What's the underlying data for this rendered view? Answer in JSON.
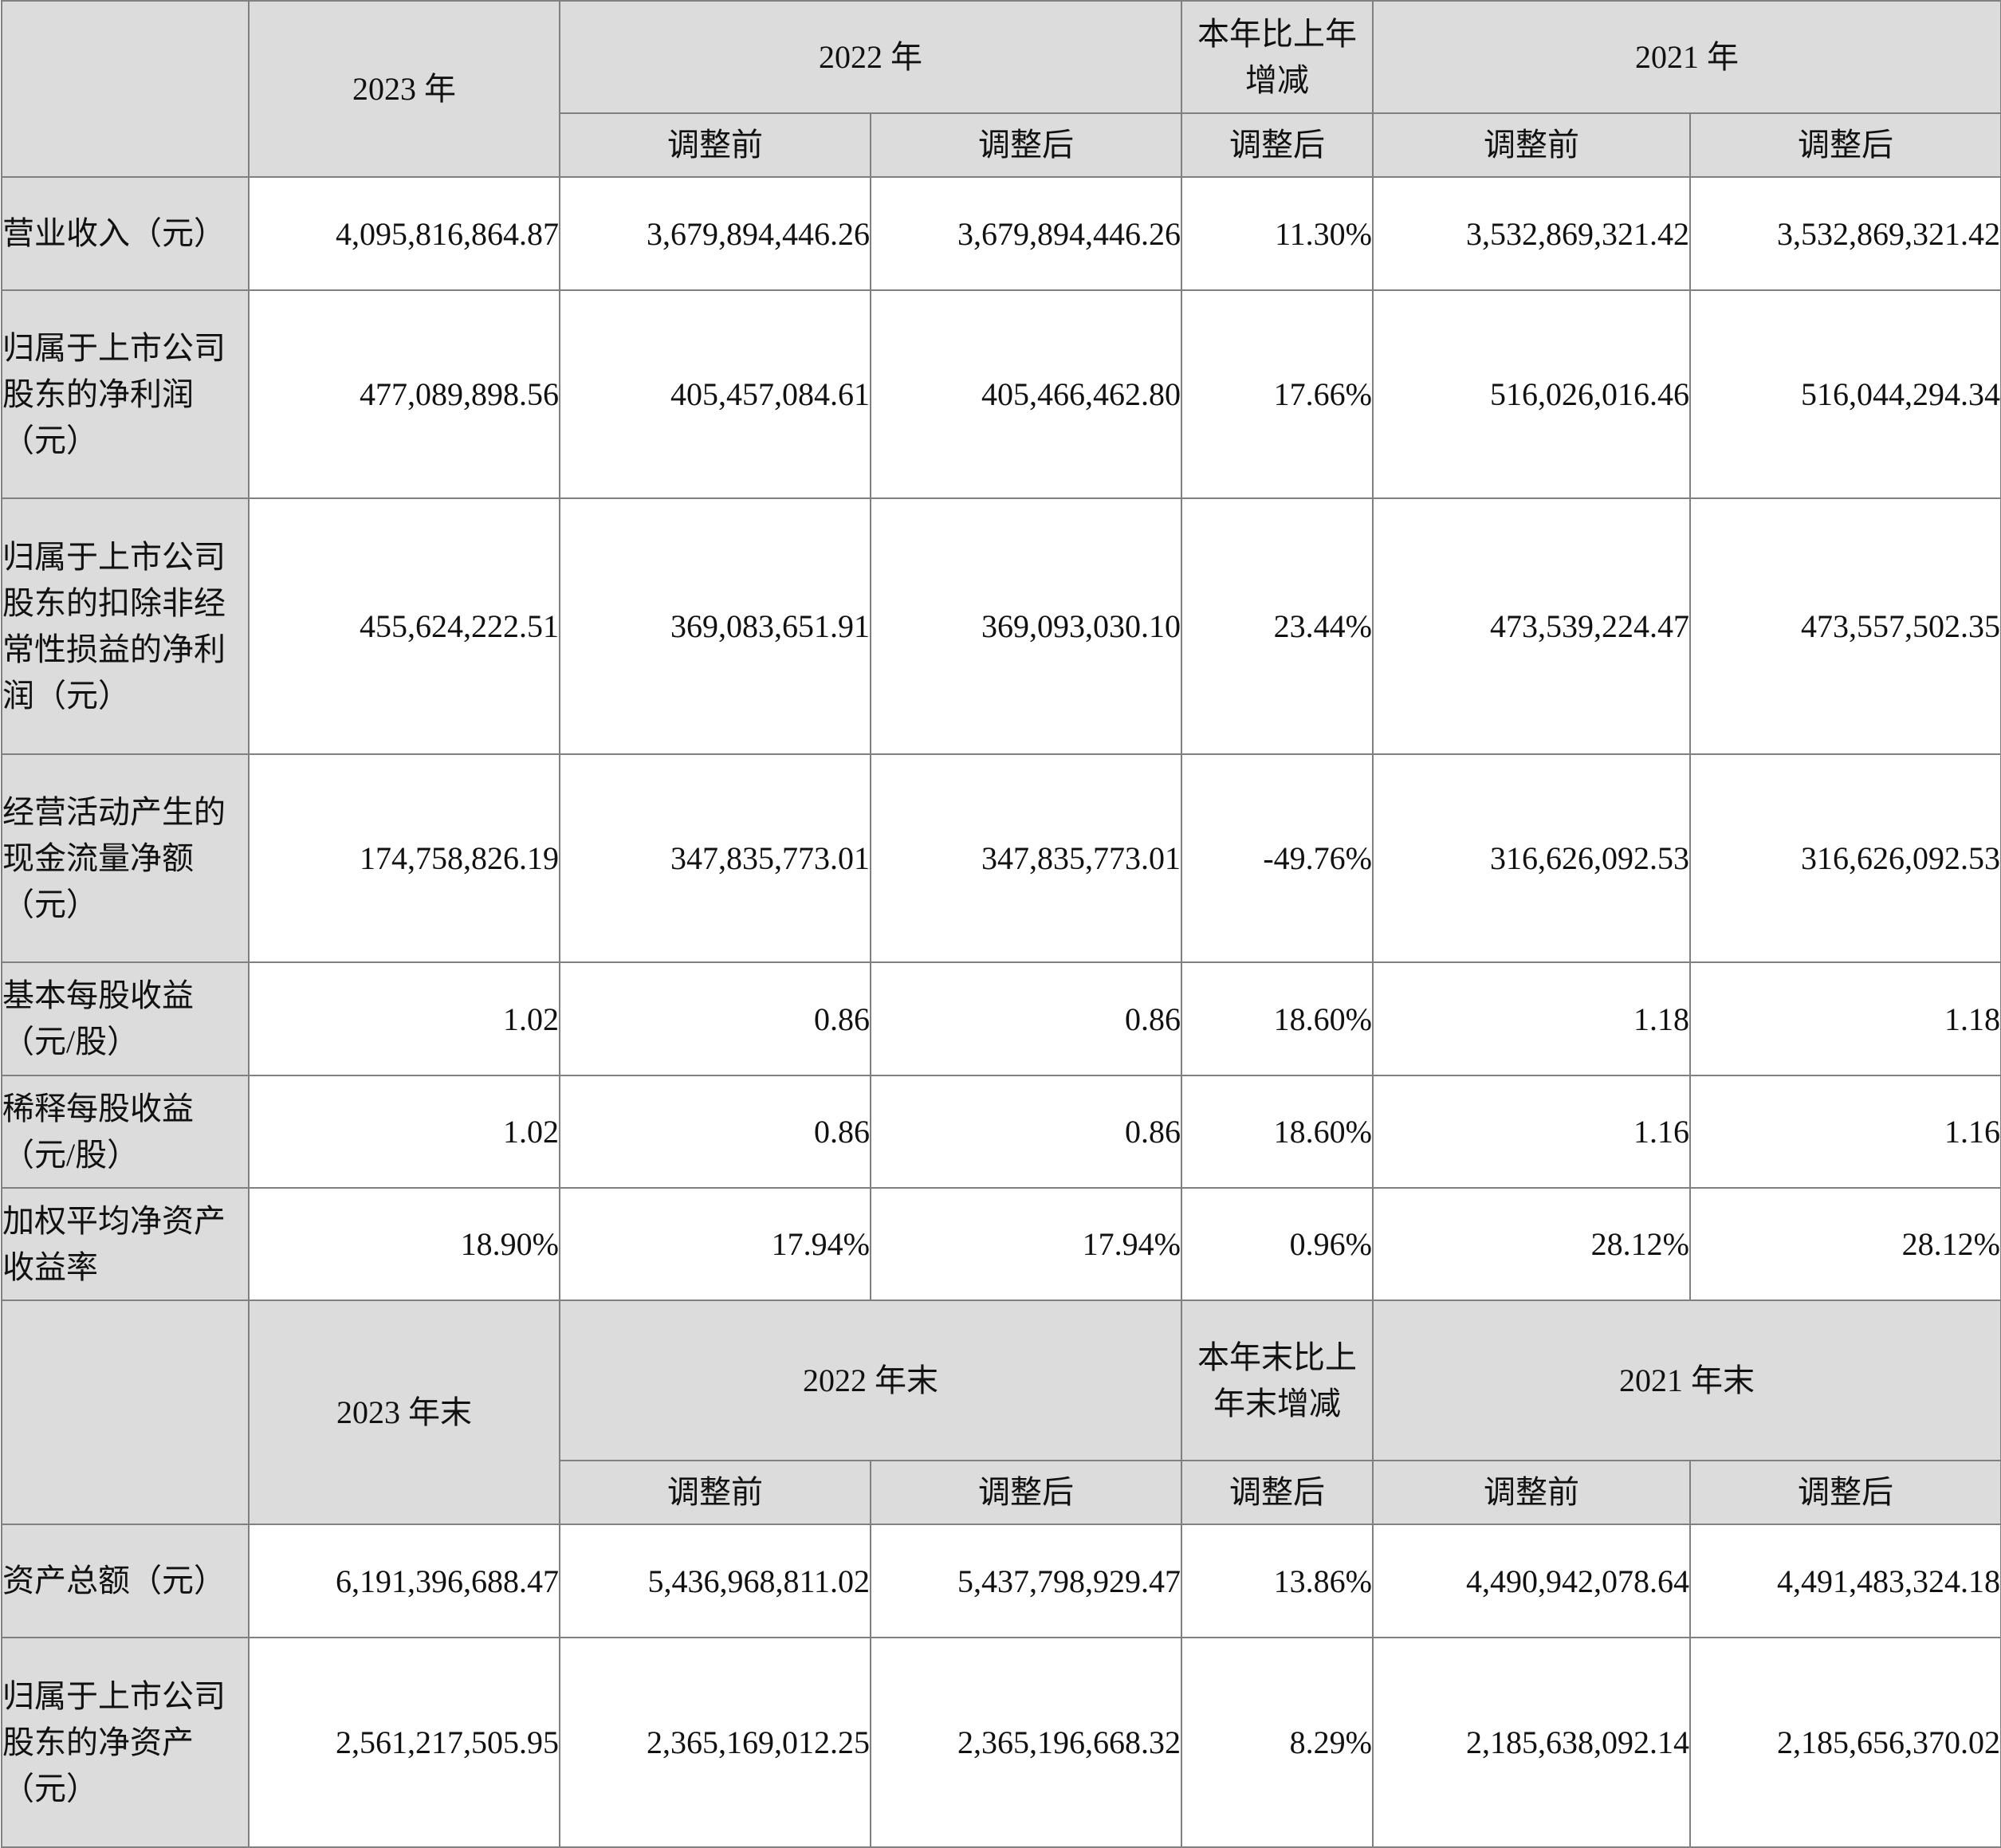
{
  "income_section": {
    "header": {
      "col_2023": "2023 年",
      "col_2022": "2022 年",
      "col_change": "本年比上年增减",
      "col_2021": "2021 年",
      "before_adj": "调整前",
      "after_adj": "调整后"
    },
    "rows": [
      {
        "label": "营业收入（元）",
        "y2023": "4,095,816,864.87",
        "y2022_before": "3,679,894,446.26",
        "y2022_after": "3,679,894,446.26",
        "change": "11.30%",
        "y2021_before": "3,532,869,321.42",
        "y2021_after": "3,532,869,321.42"
      },
      {
        "label": "归属于上市公司股东的净利润（元）",
        "y2023": "477,089,898.56",
        "y2022_before": "405,457,084.61",
        "y2022_after": "405,466,462.80",
        "change": "17.66%",
        "y2021_before": "516,026,016.46",
        "y2021_after": "516,044,294.34"
      },
      {
        "label": "归属于上市公司股东的扣除非经常性损益的净利润（元）",
        "y2023": "455,624,222.51",
        "y2022_before": "369,083,651.91",
        "y2022_after": "369,093,030.10",
        "change": "23.44%",
        "y2021_before": "473,539,224.47",
        "y2021_after": "473,557,502.35"
      },
      {
        "label": "经营活动产生的现金流量净额（元）",
        "y2023": "174,758,826.19",
        "y2022_before": "347,835,773.01",
        "y2022_after": "347,835,773.01",
        "change": "-49.76%",
        "y2021_before": "316,626,092.53",
        "y2021_after": "316,626,092.53"
      },
      {
        "label": "基本每股收益（元/股）",
        "y2023": "1.02",
        "y2022_before": "0.86",
        "y2022_after": "0.86",
        "change": "18.60%",
        "y2021_before": "1.18",
        "y2021_after": "1.18"
      },
      {
        "label": "稀释每股收益（元/股）",
        "y2023": "1.02",
        "y2022_before": "0.86",
        "y2022_after": "0.86",
        "change": "18.60%",
        "y2021_before": "1.16",
        "y2021_after": "1.16"
      },
      {
        "label": "加权平均净资产收益率",
        "y2023": "18.90%",
        "y2022_before": "17.94%",
        "y2022_after": "17.94%",
        "change": "0.96%",
        "y2021_before": "28.12%",
        "y2021_after": "28.12%"
      }
    ]
  },
  "balance_section": {
    "header": {
      "col_2023": "2023 年末",
      "col_2022": "2022 年末",
      "col_change": "本年末比上年末增减",
      "col_2021": "2021 年末",
      "before_adj": "调整前",
      "after_adj": "调整后"
    },
    "rows": [
      {
        "label": "资产总额（元）",
        "y2023": "6,191,396,688.47",
        "y2022_before": "5,436,968,811.02",
        "y2022_after": "5,437,798,929.47",
        "change": "13.86%",
        "y2021_before": "4,490,942,078.64",
        "y2021_after": "4,491,483,324.18"
      },
      {
        "label": "归属于上市公司股东的净资产（元）",
        "y2023": "2,561,217,505.95",
        "y2022_before": "2,365,169,012.25",
        "y2022_after": "2,365,196,668.32",
        "change": "8.29%",
        "y2021_before": "2,185,638,092.14",
        "y2021_after": "2,185,656,370.02"
      }
    ]
  }
}
